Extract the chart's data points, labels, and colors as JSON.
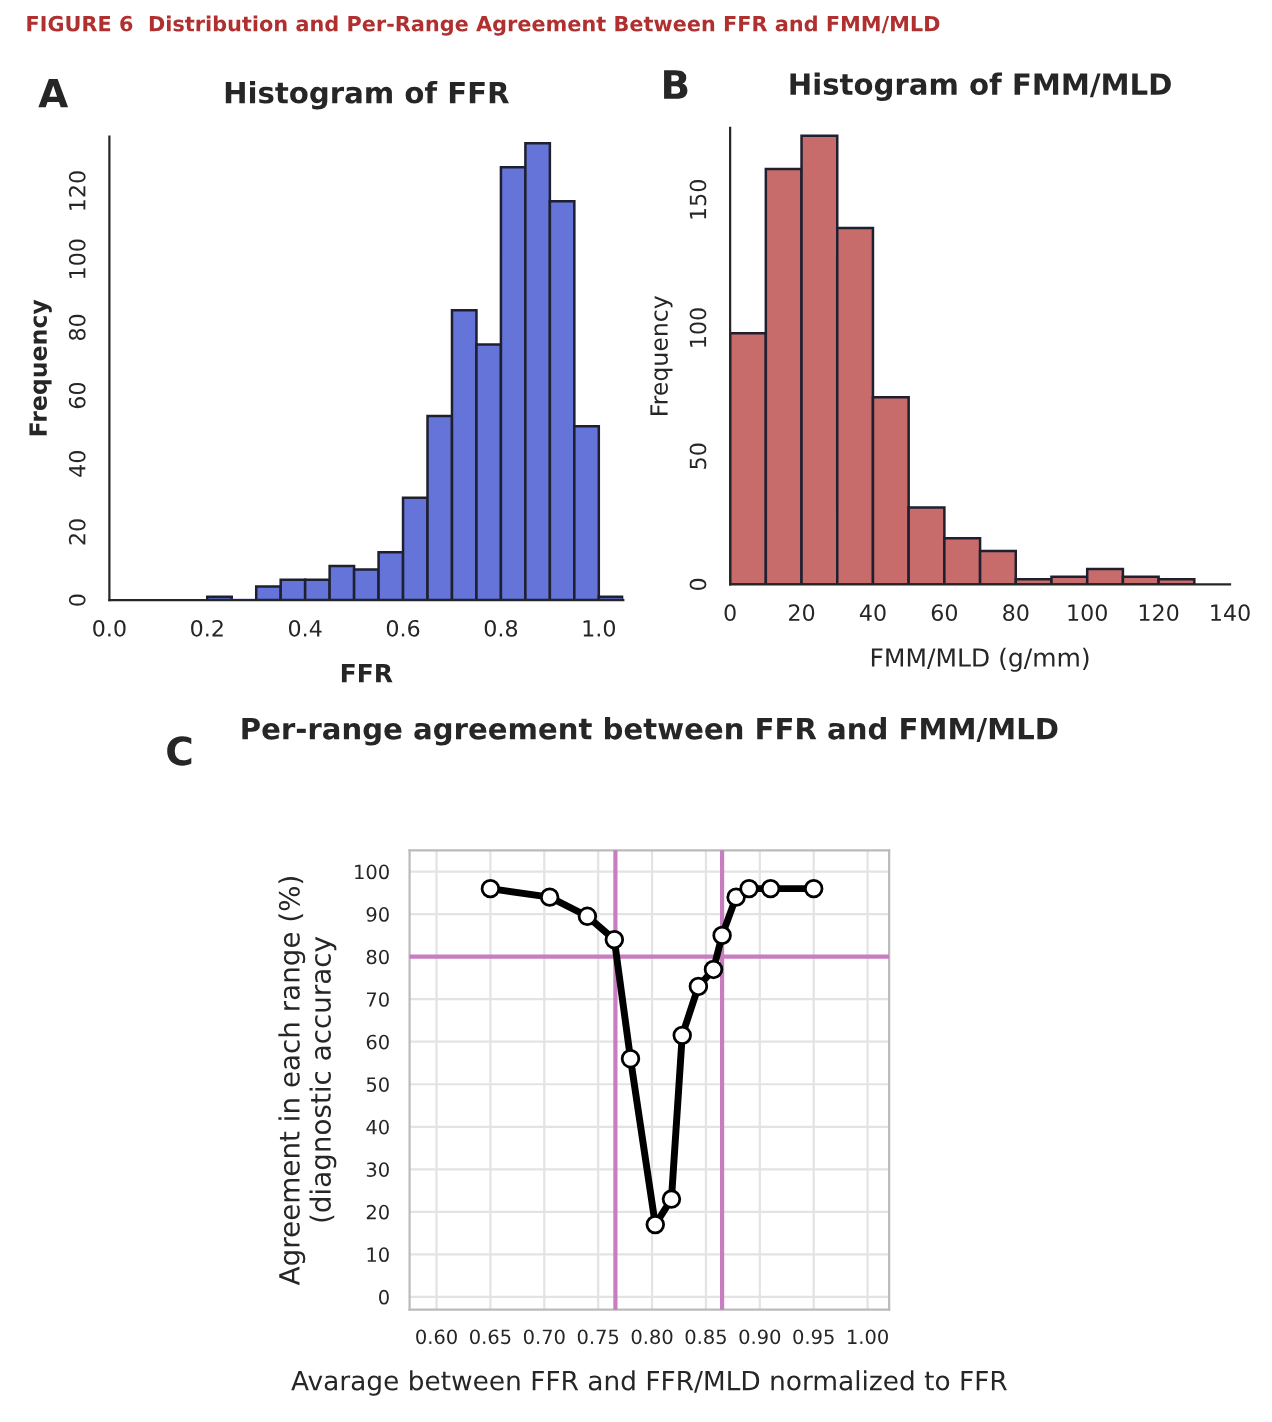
{
  "chart_data": [
    {
      "type": "histogram",
      "title": "Histogram of FFR",
      "xlabel": "FFR",
      "ylabel": "Frequency",
      "color": "#6474d9",
      "annotations": [
        "FIGURE 6  Distribution and Per-Range Agreement Between FFR and FMM/MLD",
        "A"
      ],
      "bins": [
        0.2,
        0.25,
        0.3,
        0.35,
        0.4,
        0.45,
        0.5,
        0.55,
        0.6,
        0.65,
        0.7,
        0.75,
        0.8,
        0.85,
        0.9,
        0.95,
        1.0,
        1.05
      ],
      "values": [
        1,
        0,
        4,
        6,
        6,
        10,
        9,
        14,
        30,
        54,
        85,
        75,
        127,
        134,
        117,
        51,
        1
      ],
      "xlim": [
        0,
        1.05
      ],
      "ylim": [
        0,
        136
      ],
      "xticks": [
        {
          "value": 0,
          "label": "0.0"
        },
        0.2,
        0.4,
        0.6,
        0.8,
        {
          "value": 1,
          "label": "1.0"
        }
      ],
      "yticks": [
        0,
        20,
        40,
        60,
        80,
        100,
        120
      ]
    },
    {
      "type": "histogram",
      "title": "Histogram of FMM/MLD",
      "xlabel": "FMM/MLD (g/mm)",
      "ylabel": "Frequency",
      "color": "#c86b6b",
      "annotations": [
        "B"
      ],
      "bins": [
        0,
        10,
        20,
        30,
        40,
        50,
        60,
        70,
        80,
        90,
        100,
        110,
        120,
        130
      ],
      "values": [
        98,
        162,
        175,
        139,
        73,
        30,
        18,
        13,
        2,
        3,
        6,
        3,
        2
      ],
      "xlim": [
        0,
        140
      ],
      "ylim": [
        0,
        178
      ],
      "xticks": [
        0,
        20,
        40,
        60,
        80,
        100,
        120,
        140
      ],
      "yticks": [
        0,
        50,
        100,
        150
      ]
    },
    {
      "type": "line",
      "title": "Per-range agreement between FFR and FMM/MLD",
      "xlabel": "Avarage between FFR and FFR/MLD normalized to FFR",
      "ylabel": "Agreement in each range (%)\n(diagnostic accuracy",
      "color": "#000000",
      "marker": "circle",
      "grid": true,
      "annotations": [
        "C"
      ],
      "x": [
        0.65,
        0.705,
        0.74,
        0.765,
        0.78,
        0.803,
        0.818,
        0.828,
        0.843,
        0.857,
        0.865,
        0.878,
        0.89,
        0.91,
        0.95
      ],
      "values": [
        96,
        94,
        89.5,
        84,
        56,
        17,
        23,
        61.5,
        73,
        77,
        85,
        94,
        96,
        96,
        96
      ],
      "ref_lines": [
        {
          "axis": "x",
          "value": 0.766,
          "color": "#c77dbf"
        },
        {
          "axis": "x",
          "value": 0.865,
          "color": "#c77dbf"
        },
        {
          "axis": "y",
          "value": 80,
          "color": "#c77dbf"
        }
      ],
      "xlim": [
        0.575,
        1.02
      ],
      "ylim": [
        -3,
        105
      ],
      "xticks": [
        {
          "value": 0.6,
          "label": "0.60"
        },
        {
          "value": 0.65,
          "label": "0.65"
        },
        {
          "value": 0.7,
          "label": "0.70"
        },
        {
          "value": 0.75,
          "label": "0.75"
        },
        {
          "value": 0.8,
          "label": "0.80"
        },
        {
          "value": 0.85,
          "label": "0.85"
        },
        {
          "value": 0.9,
          "label": "0.90"
        },
        {
          "value": 0.95,
          "label": "0.95"
        },
        {
          "value": 1.0,
          "label": "1.00"
        }
      ],
      "yticks": [
        0,
        10,
        20,
        30,
        40,
        50,
        60,
        70,
        80,
        90,
        100
      ]
    }
  ]
}
